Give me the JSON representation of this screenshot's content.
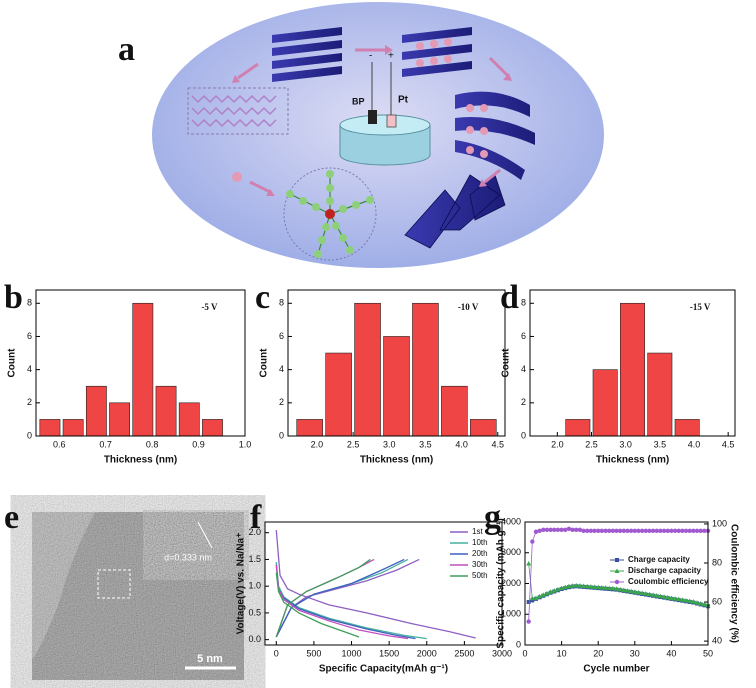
{
  "schematic": {
    "panel_label": "a",
    "electrode_labels": [
      "BP",
      "Pt"
    ],
    "polarity": [
      "-",
      "+"
    ]
  },
  "image": {
    "panel_label": "e",
    "lattice_label": "d=0.333 nm",
    "scale_bar": "5 nm"
  },
  "chart_data": [
    {
      "type": "histogram",
      "panel_label": "b",
      "annotation": "-5 V",
      "xlabel": "Thickness (nm)",
      "ylabel": "Count",
      "bins": [
        0.555,
        0.605,
        0.655,
        0.705,
        0.755,
        0.805,
        0.855,
        0.905,
        0.955
      ],
      "values": [
        1,
        1,
        3,
        2,
        8,
        3,
        2,
        1
      ],
      "color": "#f04545",
      "xlim": [
        0.55,
        1.0
      ],
      "ylim": [
        0,
        8.8
      ],
      "xticks": [
        0.6,
        0.7,
        0.8,
        0.9,
        {
          "value": 1.0,
          "label": "1.0"
        }
      ],
      "yticks": [
        0,
        2,
        4,
        6,
        8
      ]
    },
    {
      "type": "histogram",
      "panel_label": "c",
      "annotation": "-10 V",
      "xlabel": "Thickness (nm)",
      "ylabel": "Count",
      "bins": [
        1.7,
        2.1,
        2.5,
        2.9,
        3.3,
        3.7,
        4.1,
        4.5
      ],
      "values": [
        1,
        5,
        8,
        6,
        8,
        3,
        1
      ],
      "color": "#f04545",
      "xlim": [
        1.6,
        4.6
      ],
      "ylim": [
        0,
        8.8
      ],
      "xticks": [
        {
          "value": 2,
          "label": "2.0"
        },
        2.5,
        {
          "value": 3,
          "label": "3.0"
        },
        3.5,
        {
          "value": 4,
          "label": "4.0"
        },
        4.5
      ],
      "yticks": [
        0,
        2,
        4,
        6,
        8
      ]
    },
    {
      "type": "histogram",
      "panel_label": "d",
      "annotation": "-15 V",
      "xlabel": "Thickness (nm)",
      "ylabel": "Count",
      "bins": [
        2.1,
        2.5,
        2.9,
        3.3,
        3.7,
        4.1
      ],
      "values": [
        1,
        4,
        8,
        5,
        1
      ],
      "color": "#f04545",
      "xlim": [
        1.6,
        4.6
      ],
      "ylim": [
        0,
        8.8
      ],
      "xticks": [
        {
          "value": 2,
          "label": "2.0"
        },
        2.5,
        {
          "value": 3,
          "label": "3.0"
        },
        3.5,
        {
          "value": 4,
          "label": "4.0"
        },
        4.5
      ],
      "yticks": [
        0,
        2,
        4,
        6,
        8
      ]
    },
    {
      "type": "line",
      "panel_label": "f",
      "xlabel": "Specific Capacity(mAh g⁻¹)",
      "ylabel": "Voltage(V) vs. Na/Na⁺",
      "legend": "upper right",
      "xlim": [
        -150,
        3000
      ],
      "ylim": [
        -0.1,
        2.2
      ],
      "xticks": [
        0,
        500,
        1000,
        1500,
        2000,
        2500,
        3000
      ],
      "yticks": [
        {
          "value": 0,
          "label": "0.0"
        },
        0.5,
        {
          "value": 1,
          "label": "1.0"
        },
        1.5,
        {
          "value": 2,
          "label": "2.0"
        }
      ],
      "series": [
        {
          "name": "1st",
          "color": "#8e5fc4",
          "x": [
            0,
            50,
            150,
            300,
            700,
            1200,
            1800,
            2300,
            2650,
            null,
            0,
            200,
            400,
            800,
            1200,
            1600,
            1900
          ],
          "values": [
            2.05,
            1.2,
            0.95,
            0.85,
            0.65,
            0.5,
            0.3,
            0.15,
            0.03,
            null,
            0.05,
            0.6,
            0.8,
            0.95,
            1.1,
            1.3,
            1.5
          ]
        },
        {
          "name": "10th",
          "color": "#45b0a0",
          "x": [
            0,
            30,
            100,
            300,
            700,
            1200,
            1700,
            2000,
            null,
            0,
            200,
            500,
            1000,
            1400,
            1750
          ],
          "values": [
            1.45,
            1.0,
            0.8,
            0.6,
            0.4,
            0.22,
            0.08,
            0.02,
            null,
            0.05,
            0.6,
            0.85,
            1.05,
            1.25,
            1.5
          ]
        },
        {
          "name": "20th",
          "color": "#4060c0",
          "x": [
            0,
            30,
            100,
            300,
            700,
            1200,
            1600,
            1850,
            null,
            0,
            200,
            500,
            1000,
            1400,
            1700
          ],
          "values": [
            1.4,
            0.95,
            0.78,
            0.58,
            0.38,
            0.2,
            0.08,
            0.02,
            null,
            0.05,
            0.6,
            0.85,
            1.05,
            1.3,
            1.5
          ]
        },
        {
          "name": "30th",
          "color": "#c24fc0",
          "x": [
            0,
            30,
            100,
            300,
            700,
            1100,
            1500,
            1750,
            null,
            0,
            150,
            400,
            800,
            1100,
            1300
          ],
          "values": [
            1.4,
            0.95,
            0.75,
            0.55,
            0.35,
            0.18,
            0.07,
            0.02,
            null,
            0.05,
            0.65,
            0.9,
            1.15,
            1.35,
            1.5
          ]
        },
        {
          "name": "50th",
          "color": "#3f9e5a",
          "x": [
            0,
            30,
            100,
            300,
            600,
            900,
            1100,
            null,
            0,
            150,
            400,
            800,
            1100,
            1250
          ],
          "values": [
            1.25,
            0.9,
            0.7,
            0.5,
            0.3,
            0.15,
            0.05,
            null,
            0.05,
            0.65,
            0.9,
            1.15,
            1.35,
            1.5
          ]
        }
      ]
    },
    {
      "type": "dual",
      "panel_label": "g",
      "xlabel": "Cycle number",
      "ylabel": "Specific capacity (mAh g⁻¹)",
      "y2label": "Coulombic efficiency (%)",
      "legend": "center right",
      "x": [
        1,
        2,
        3,
        4,
        5,
        6,
        7,
        8,
        9,
        10,
        11,
        12,
        13,
        14,
        15,
        16,
        17,
        18,
        19,
        20,
        21,
        22,
        23,
        24,
        25,
        26,
        27,
        28,
        29,
        30,
        31,
        32,
        33,
        34,
        35,
        36,
        37,
        38,
        39,
        40,
        41,
        42,
        43,
        44,
        45,
        46,
        47,
        48,
        49,
        50
      ],
      "xlim": [
        0,
        50
      ],
      "ylim": [
        0,
        4000
      ],
      "y2lim": [
        38,
        101
      ],
      "xticks": [
        0,
        10,
        20,
        30,
        40,
        50
      ],
      "yticks": [
        0,
        1000,
        2000,
        3000,
        4000
      ],
      "y2ticks": [
        40,
        60,
        80,
        100
      ],
      "series": [
        {
          "name": "Charge capacity",
          "color": "#3a4fa0",
          "marker": "square",
          "values": [
            1400,
            1450,
            1500,
            1550,
            1600,
            1650,
            1700,
            1740,
            1780,
            1820,
            1850,
            1880,
            1900,
            1910,
            1900,
            1890,
            1880,
            1870,
            1860,
            1850,
            1840,
            1830,
            1820,
            1810,
            1800,
            1780,
            1760,
            1740,
            1720,
            1700,
            1680,
            1660,
            1640,
            1620,
            1600,
            1580,
            1560,
            1540,
            1520,
            1500,
            1480,
            1460,
            1440,
            1420,
            1400,
            1380,
            1350,
            1320,
            1290,
            1260
          ]
        },
        {
          "name": "Discharge capacity",
          "color": "#3aa84a",
          "marker": "triangle",
          "values": [
            2650,
            1520,
            1530,
            1580,
            1630,
            1680,
            1730,
            1770,
            1810,
            1850,
            1880,
            1910,
            1930,
            1940,
            1930,
            1920,
            1910,
            1900,
            1890,
            1880,
            1870,
            1860,
            1850,
            1840,
            1830,
            1810,
            1790,
            1770,
            1750,
            1730,
            1710,
            1690,
            1670,
            1650,
            1630,
            1610,
            1590,
            1570,
            1550,
            1530,
            1510,
            1490,
            1470,
            1450,
            1430,
            1410,
            1380,
            1350,
            1320,
            1290
          ]
        },
        {
          "name": "Coulombic efficiency",
          "color": "#a05ad0",
          "marker": "circle",
          "axis": "y2",
          "values": [
            50,
            91,
            96,
            96.5,
            97,
            97,
            97,
            97,
            97,
            97,
            97,
            97.5,
            97,
            97,
            97,
            96.5,
            96.5,
            96.5,
            96.5,
            96.5,
            96.5,
            96.5,
            96.5,
            96.5,
            96.5,
            96.5,
            96.5,
            96.5,
            96.5,
            96.5,
            96.5,
            96.5,
            96.5,
            96.5,
            96.5,
            96.5,
            96.5,
            96.5,
            96.5,
            96.5,
            96.5,
            96.5,
            96.5,
            96.5,
            96.5,
            96.5,
            96.5,
            96.5,
            96.5,
            96.5
          ]
        }
      ]
    }
  ]
}
